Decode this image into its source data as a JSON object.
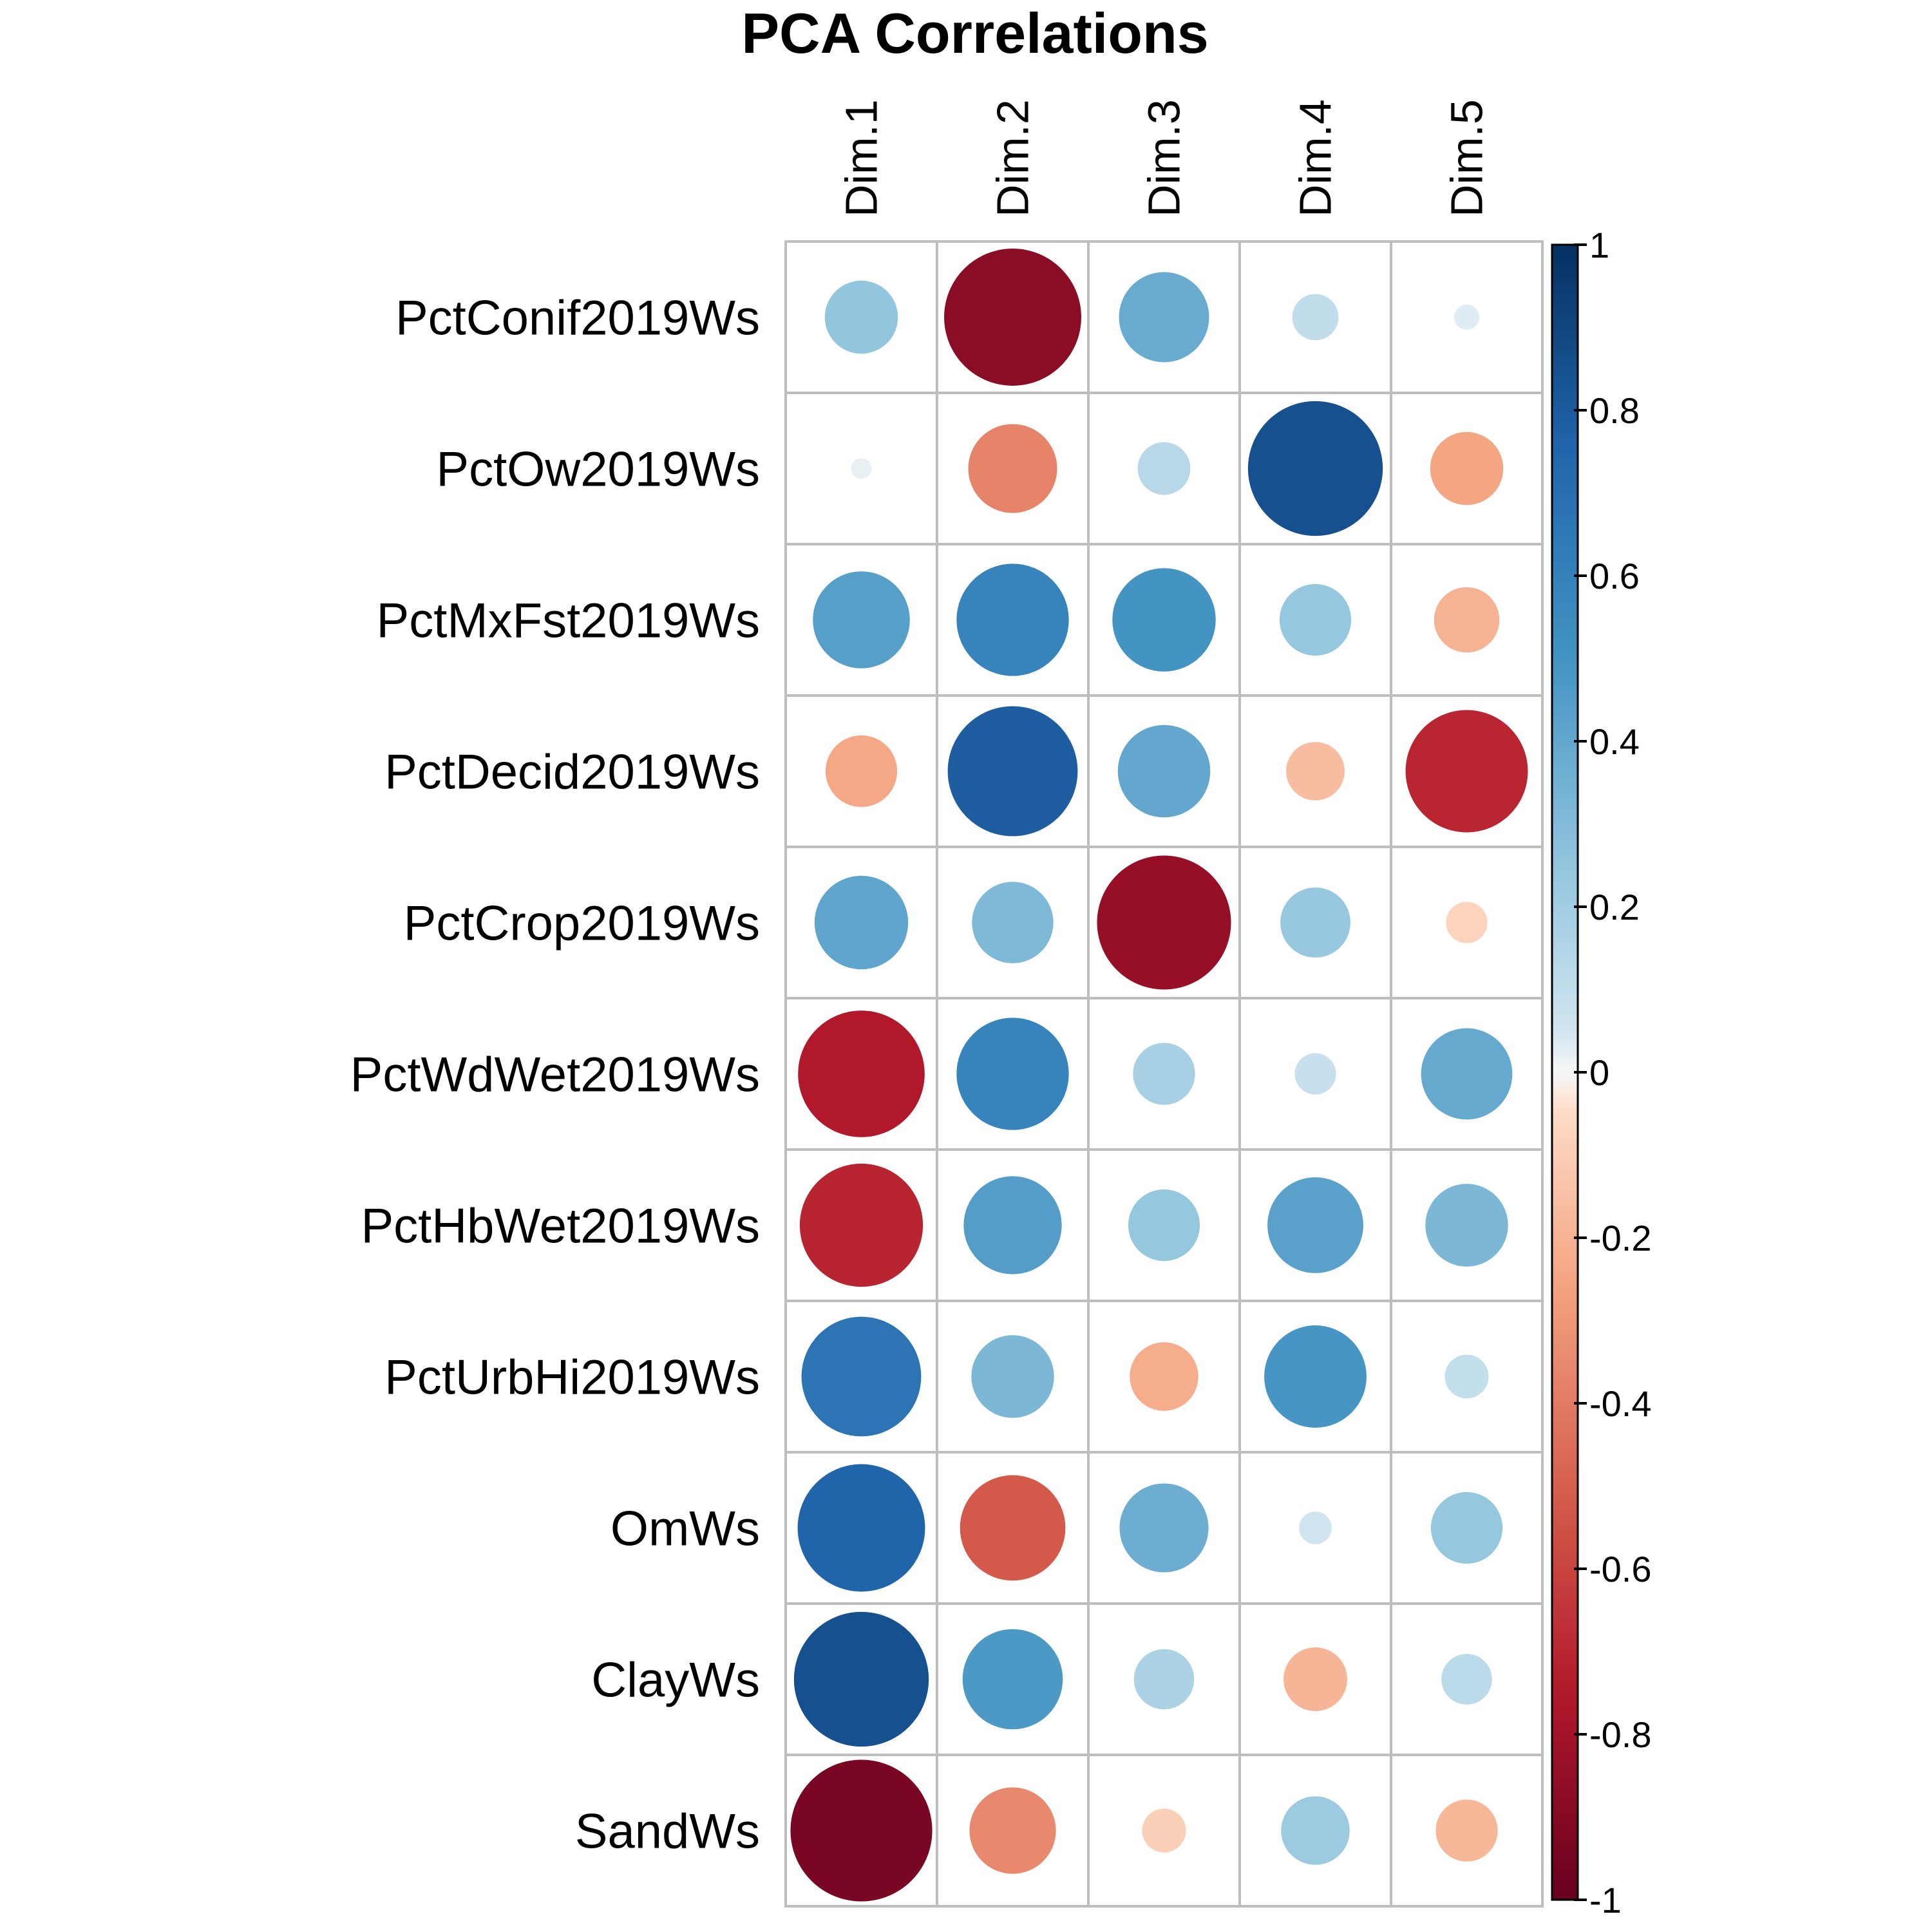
{
  "chart_data": {
    "type": "heatmap",
    "title": "PCA Correlations",
    "columns": [
      "Dim.1",
      "Dim.2",
      "Dim.3",
      "Dim.4",
      "Dim.5"
    ],
    "rows": [
      "PctConif2019Ws",
      "PctOw2019Ws",
      "PctMxFst2019Ws",
      "PctDecid2019Ws",
      "PctCrop2019Ws",
      "PctWdWet2019Ws",
      "PctHbWet2019Ws",
      "PctUrbHi2019Ws",
      "OmWs",
      "ClayWs",
      "SandWs"
    ],
    "values": [
      [
        0.25,
        -0.88,
        0.38,
        0.1,
        0.03
      ],
      [
        0.02,
        -0.37,
        0.13,
        0.85,
        -0.25
      ],
      [
        0.44,
        0.59,
        0.5,
        0.24,
        -0.2
      ],
      [
        -0.24,
        0.79,
        0.4,
        -0.16,
        -0.7
      ],
      [
        0.41,
        0.31,
        -0.84,
        0.23,
        -0.08
      ],
      [
        -0.75,
        0.59,
        0.18,
        0.08,
        0.39
      ],
      [
        -0.71,
        0.45,
        0.24,
        0.43,
        0.32
      ],
      [
        0.67,
        0.32,
        -0.22,
        0.49,
        0.09
      ],
      [
        0.76,
        -0.52,
        0.37,
        0.05,
        0.24
      ],
      [
        0.85,
        0.47,
        0.17,
        -0.19,
        0.12
      ],
      [
        -0.94,
        -0.35,
        -0.09,
        0.22,
        -0.18
      ]
    ],
    "color_range": [
      -1,
      1
    ],
    "colorbar_ticks": [
      "1",
      "0.8",
      "0.6",
      "0.4",
      "0.2",
      "0",
      "-0.2",
      "-0.4",
      "-0.6",
      "-0.8",
      "-1"
    ],
    "legend_position": "right",
    "colors": {
      "negative_end": "#67001F",
      "neutral": "#F7F7F7",
      "positive_end": "#053061",
      "grid": "#BEBEBE"
    }
  }
}
